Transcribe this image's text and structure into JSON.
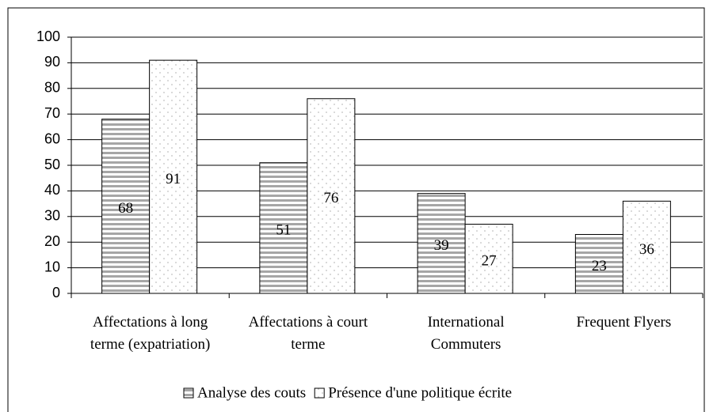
{
  "chart_data": {
    "type": "bar",
    "categories": [
      "Affectations à long terme (expatriation)",
      "Affectations à court terme",
      "International Commuters",
      "Frequent Flyers"
    ],
    "series": [
      {
        "name": "Analyse des couts",
        "color": "#a6a6a6",
        "values": [
          68,
          51,
          39,
          23
        ]
      },
      {
        "name": "Présence d'une politique écrite",
        "color": "#c0c0c0",
        "values": [
          91,
          76,
          27,
          36
        ]
      }
    ],
    "ylim": [
      0,
      100
    ],
    "yticks": [
      0,
      10,
      20,
      30,
      40,
      50,
      60,
      70,
      80,
      90,
      100
    ],
    "grid": true,
    "legend": "bottom"
  }
}
